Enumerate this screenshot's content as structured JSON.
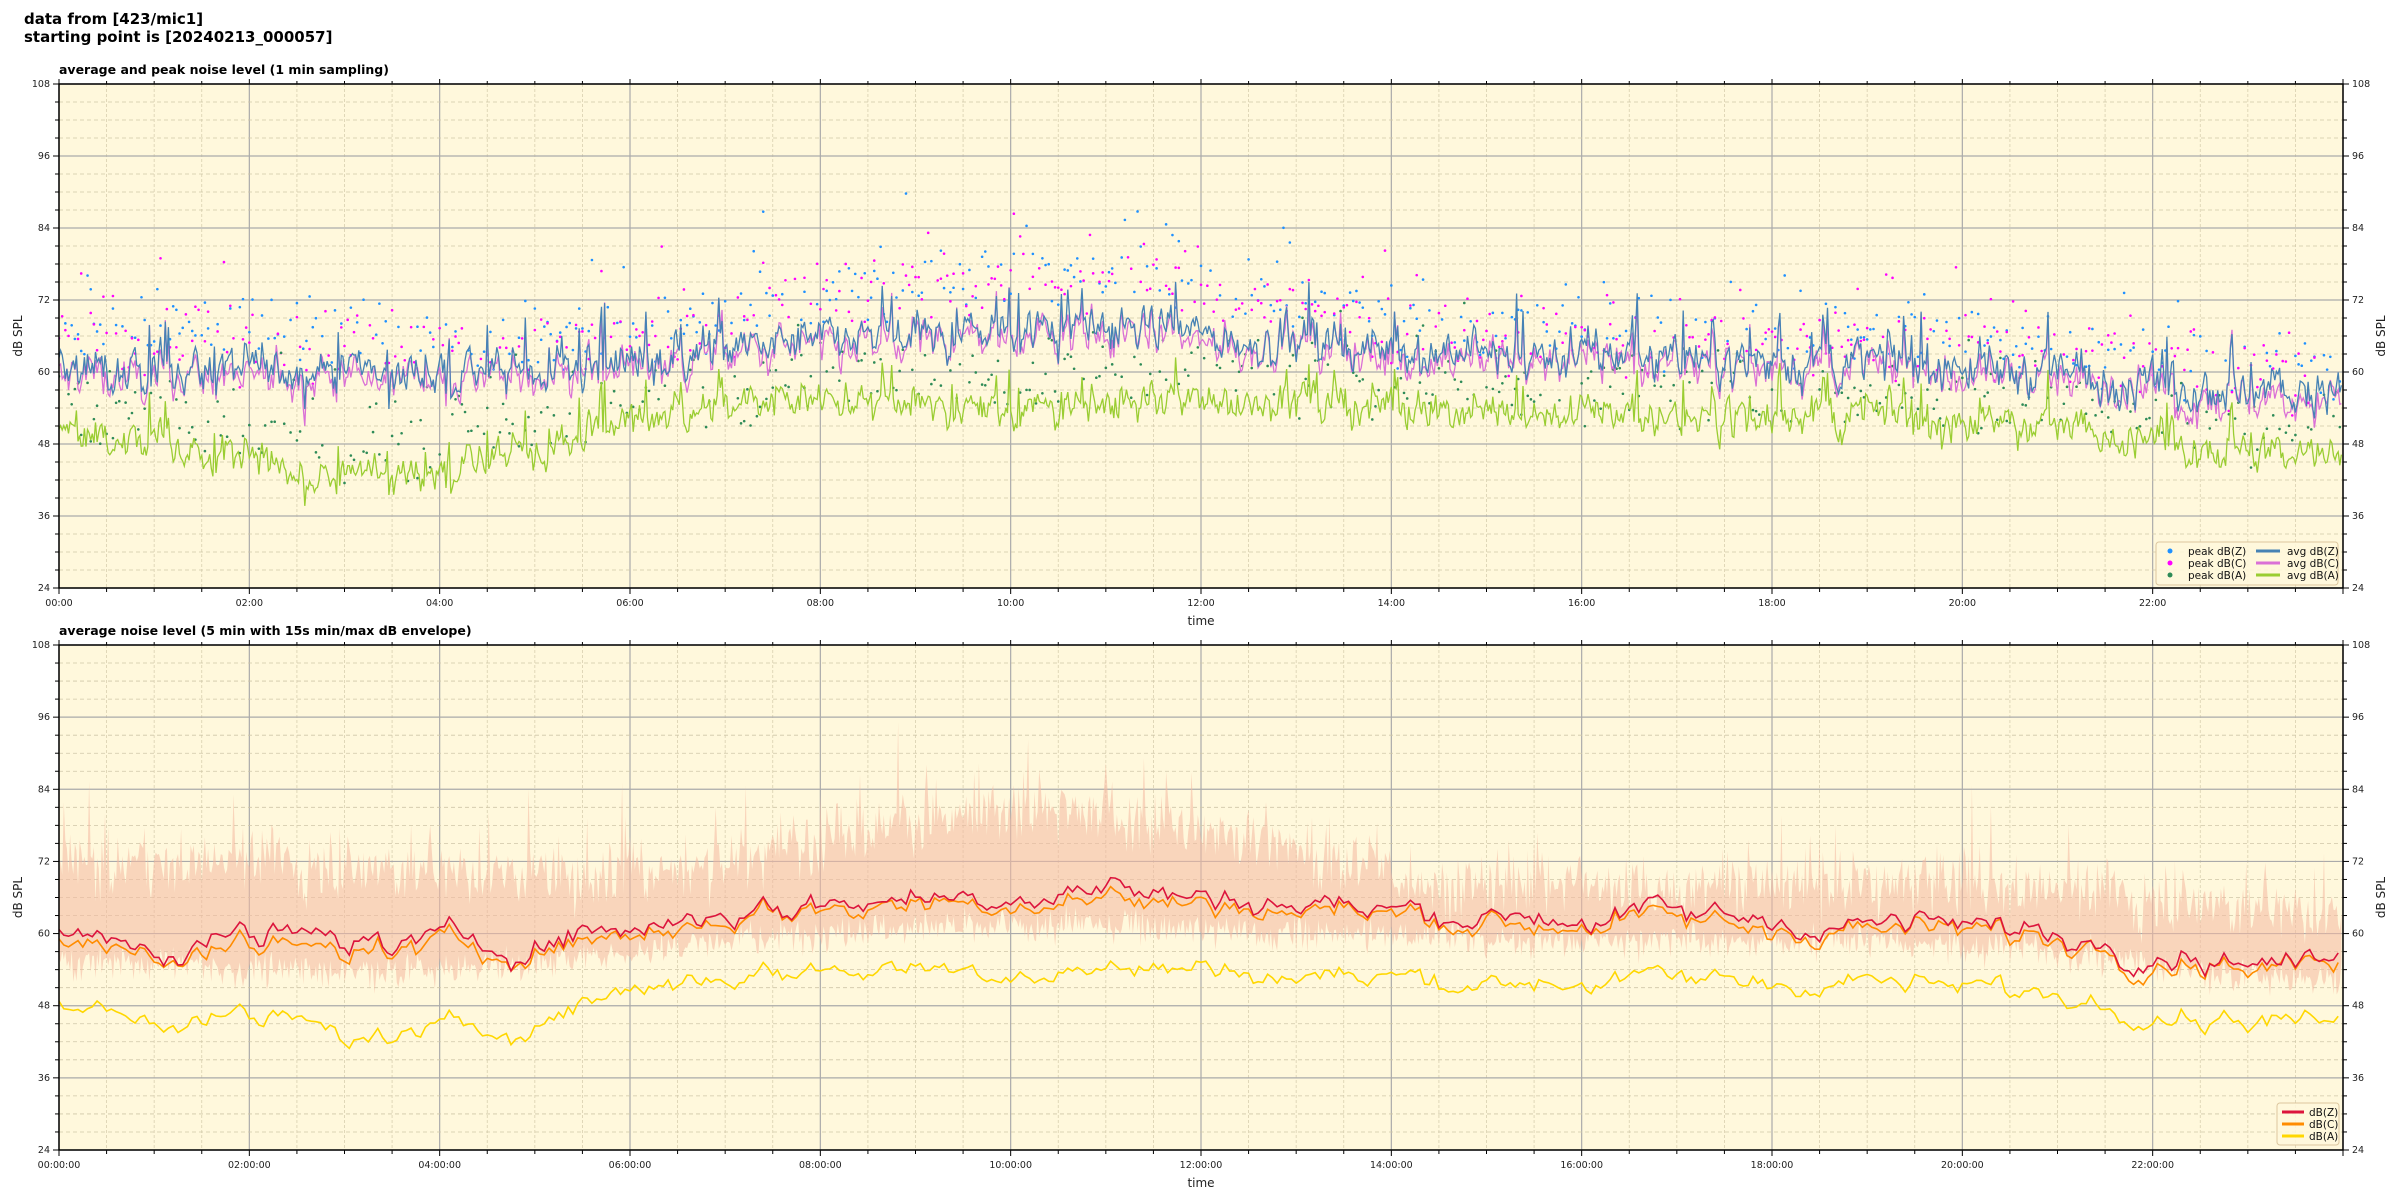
{
  "figure": {
    "title_line1": "data from [423/mic1]",
    "title_line2": "starting point is [20240213_000057]",
    "background": "#fff8dc"
  },
  "chart_data": [
    {
      "type": "line",
      "title": "average and peak noise level (1 min sampling)",
      "xlabel": "time",
      "ylabel": "dB SPL",
      "ylim": [
        24,
        108
      ],
      "yticks": [
        "24",
        "36",
        "48",
        "60",
        "72",
        "84",
        "96",
        "108"
      ],
      "xlim_hours": [
        0,
        24
      ],
      "xticks": [
        "00:00",
        "02:00",
        "04:00",
        "06:00",
        "08:00",
        "10:00",
        "12:00",
        "14:00",
        "16:00",
        "18:00",
        "20:00",
        "22:00"
      ],
      "grid": true,
      "legend_position": "lower-right",
      "sampling_minutes": 1,
      "hours": [
        0,
        1,
        2,
        3,
        4,
        5,
        6,
        7,
        8,
        9,
        10,
        11,
        12,
        13,
        14,
        15,
        16,
        17,
        18,
        19,
        20,
        21,
        22,
        23,
        24
      ],
      "series": [
        {
          "name": "peak dB(Z)",
          "kind": "scatter",
          "color": "#1e90ff",
          "hourly_typical": [
            66,
            66,
            67,
            66,
            66,
            65,
            67,
            70,
            74,
            76,
            77,
            77,
            75,
            72,
            69,
            67,
            67,
            67,
            66,
            66,
            66,
            65,
            63,
            61,
            60
          ]
        },
        {
          "name": "peak dB(C)",
          "kind": "scatter",
          "color": "#ff00ff",
          "hourly_typical": [
            65,
            65,
            66,
            65,
            65,
            64,
            66,
            69,
            73,
            75,
            76,
            76,
            74,
            71,
            68,
            66,
            66,
            66,
            65,
            65,
            65,
            64,
            62,
            60,
            59
          ]
        },
        {
          "name": "peak dB(A)",
          "kind": "scatter",
          "color": "#2e8b57",
          "hourly_typical": [
            55,
            53,
            51,
            49,
            49,
            51,
            56,
            58,
            59,
            59,
            59,
            60,
            60,
            60,
            59,
            57,
            57,
            57,
            57,
            57,
            56,
            55,
            53,
            51,
            50
          ]
        },
        {
          "name": "avg dB(Z)",
          "kind": "line",
          "color": "#4682b4",
          "hourly_typical": [
            60,
            60,
            60,
            60,
            60,
            60,
            62,
            64,
            65,
            66,
            67,
            68,
            66,
            65,
            64,
            63,
            63,
            63,
            62,
            62,
            61,
            60,
            58,
            57,
            56
          ]
        },
        {
          "name": "avg dB(C)",
          "kind": "line",
          "color": "#da70d6",
          "hourly_typical": [
            59,
            59,
            59,
            59,
            59,
            59,
            61,
            63,
            64,
            65,
            66,
            67,
            65,
            64,
            63,
            62,
            62,
            62,
            61,
            61,
            60,
            59,
            57,
            56,
            55
          ]
        },
        {
          "name": "avg dB(A)",
          "kind": "line",
          "color": "#9acd32",
          "hourly_typical": [
            50,
            48,
            45,
            43,
            44,
            47,
            52,
            54,
            55,
            54,
            54,
            55,
            55,
            55,
            55,
            53,
            53,
            53,
            53,
            53,
            52,
            51,
            49,
            47,
            46
          ]
        }
      ]
    },
    {
      "type": "line",
      "title": "average noise level (5 min with 15s min/max dB envelope)",
      "xlabel": "time",
      "ylabel": "dB SPL",
      "ylim": [
        24,
        108
      ],
      "yticks": [
        "24",
        "36",
        "48",
        "60",
        "72",
        "84",
        "96",
        "108"
      ],
      "xlim_hours": [
        0,
        24
      ],
      "xticks": [
        "00:00:00",
        "02:00:00",
        "04:00:00",
        "06:00:00",
        "08:00:00",
        "10:00:00",
        "12:00:00",
        "14:00:00",
        "16:00:00",
        "18:00:00",
        "20:00:00",
        "22:00:00"
      ],
      "grid": true,
      "legend_position": "lower-right",
      "envelope_color": "#f4b8a0",
      "hours": [
        0,
        1,
        2,
        3,
        4,
        5,
        6,
        7,
        8,
        9,
        10,
        11,
        12,
        13,
        14,
        15,
        16,
        17,
        18,
        19,
        20,
        21,
        22,
        23,
        24
      ],
      "envelope_max_typical": [
        72,
        72,
        73,
        71,
        70,
        70,
        70,
        72,
        76,
        79,
        80,
        80,
        78,
        74,
        70,
        68,
        68,
        68,
        68,
        68,
        68,
        68,
        66,
        64,
        63
      ],
      "envelope_min_typical": [
        55,
        55,
        54,
        54,
        54,
        55,
        57,
        59,
        60,
        61,
        61,
        62,
        60,
        60,
        60,
        59,
        59,
        59,
        59,
        59,
        58,
        57,
        55,
        53,
        52
      ],
      "series": [
        {
          "name": "dB(Z)",
          "color": "#dc143c",
          "hourly_typical": [
            60,
            59,
            59,
            59,
            58,
            59,
            61,
            64,
            65,
            66,
            67,
            68,
            66,
            65,
            64,
            63,
            63,
            63,
            62,
            62,
            61,
            60,
            58,
            56,
            55
          ]
        },
        {
          "name": "dB(C)",
          "color": "#ff8c00",
          "hourly_typical": [
            58,
            58,
            57,
            57,
            57,
            58,
            60,
            63,
            64,
            65,
            66,
            66,
            65,
            64,
            63,
            62,
            62,
            62,
            61,
            61,
            60,
            59,
            57,
            55,
            54
          ]
        },
        {
          "name": "dB(A)",
          "color": "#ffd700",
          "hourly_typical": [
            48,
            47,
            46,
            43,
            43,
            46,
            51,
            53,
            54,
            54,
            54,
            54,
            54,
            53,
            53,
            52,
            52,
            52,
            52,
            52,
            51,
            50,
            48,
            46,
            45
          ]
        }
      ]
    }
  ]
}
